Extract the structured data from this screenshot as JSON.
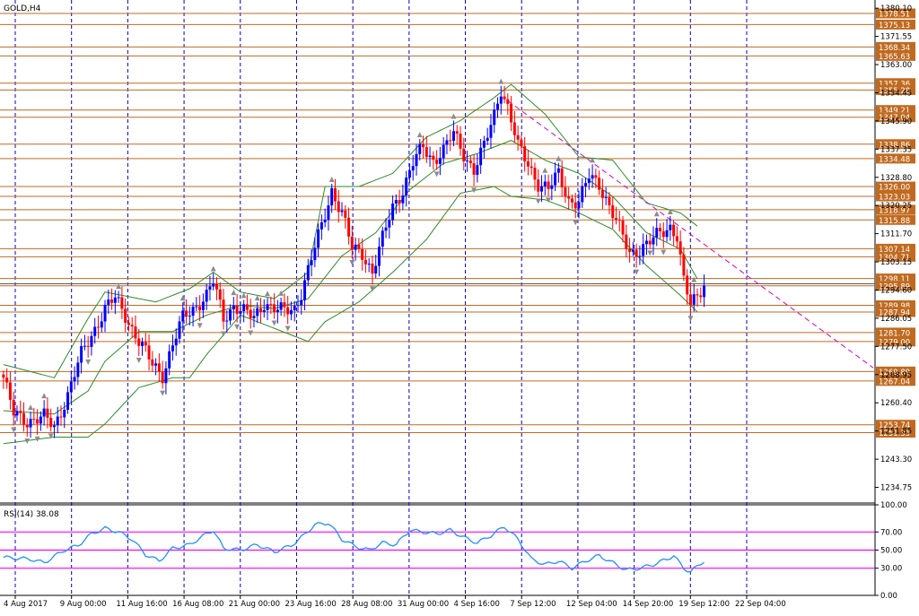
{
  "window": {
    "symbol_label": "GOLD,H4"
  },
  "chart_data": [
    {
      "type": "candlestick",
      "title": "GOLD,H4",
      "ylim": [
        1230.0,
        1381.5
      ],
      "price_axis_ticks": [
        1380.1,
        1371.55,
        1363.0,
        1354.45,
        1345.9,
        1337.35,
        1328.8,
        1320.25,
        1311.7,
        1303.15,
        1294.6,
        1286.05,
        1277.5,
        1268.95,
        1260.4,
        1251.85,
        1243.3,
        1234.75
      ],
      "price_axis_tick_labels": [
        "1380.10",
        "1371.55",
        "1363.00",
        "1354.45",
        "1345.90",
        "1337.35",
        "1328.80",
        "1320.25",
        "1311.70",
        "1303.15",
        "1294.60",
        "1286.05",
        "1277.50",
        "1268.95",
        "1260.40",
        "1251.85",
        "1243.30",
        "1234.75"
      ],
      "time_axis_labels": [
        "4 Aug 2017",
        "9 Aug 00:00",
        "11 Aug 16:00",
        "16 Aug 08:00",
        "21 Aug 00:00",
        "23 Aug 16:00",
        "28 Aug 08:00",
        "31 Aug 00:00",
        "4 Sep 16:00",
        "7 Sep 12:00",
        "12 Sep 04:00",
        "14 Sep 20:00",
        "19 Sep 12:00",
        "22 Sep 04:00"
      ],
      "horizontal_levels": [
        1378.51,
        1375.13,
        1368.34,
        1365.63,
        1357.36,
        1355.28,
        1349.21,
        1347.04,
        1338.86,
        1334.48,
        1326.0,
        1323.03,
        1318.97,
        1315.88,
        1307.14,
        1304.71,
        1298.11,
        1295.89,
        1289.98,
        1287.94,
        1281.7,
        1279.0,
        1269.89,
        1267.04,
        1253.74,
        1251.35
      ],
      "horizontal_level_labels": [
        "1378.51",
        "1375.13",
        "1368.34",
        "1365.63",
        "1357.36",
        "1355.28",
        "1349.21",
        "1347.04",
        "1338.86",
        "1334.48",
        "1326.00",
        "1323.03",
        "1318.97",
        "1315.88",
        "1307.14",
        "1304.71",
        "1298.11",
        "1295.89",
        "1289.98",
        "1287.94",
        "1281.70",
        "1279.00",
        "1269.89",
        "1267.04",
        "1253.74",
        "1251.35"
      ],
      "current_price": 1296.5,
      "close_trend_path": [
        [
          0,
          1268
        ],
        [
          3,
          1257
        ],
        [
          7,
          1255
        ],
        [
          12,
          1256
        ],
        [
          15,
          1253
        ],
        [
          19,
          1263
        ],
        [
          23,
          1275
        ],
        [
          27,
          1283
        ],
        [
          30,
          1289
        ],
        [
          33,
          1292
        ],
        [
          36,
          1287
        ],
        [
          40,
          1279
        ],
        [
          44,
          1272
        ],
        [
          47,
          1269
        ],
        [
          50,
          1278
        ],
        [
          53,
          1286
        ],
        [
          57,
          1290
        ],
        [
          60,
          1293
        ],
        [
          62,
          1297
        ],
        [
          65,
          1286
        ],
        [
          68,
          1290
        ],
        [
          71,
          1288
        ],
        [
          74,
          1286
        ],
        [
          77,
          1291
        ],
        [
          80,
          1289
        ],
        [
          83,
          1288
        ],
        [
          86,
          1289
        ],
        [
          88,
          1294
        ],
        [
          91,
          1304
        ],
        [
          94,
          1314
        ],
        [
          97,
          1325
        ],
        [
          100,
          1318
        ],
        [
          103,
          1307
        ],
        [
          106,
          1306
        ],
        [
          109,
          1300
        ],
        [
          112,
          1310
        ],
        [
          115,
          1320
        ],
        [
          118,
          1325
        ],
        [
          121,
          1333
        ],
        [
          124,
          1338
        ],
        [
          127,
          1334
        ],
        [
          130,
          1337
        ],
        [
          133,
          1342
        ],
        [
          136,
          1336
        ],
        [
          139,
          1331
        ],
        [
          142,
          1338
        ],
        [
          145,
          1348
        ],
        [
          147,
          1356
        ],
        [
          149,
          1350
        ],
        [
          152,
          1338
        ],
        [
          155,
          1333
        ],
        [
          158,
          1327
        ],
        [
          161,
          1325
        ],
        [
          164,
          1330
        ],
        [
          167,
          1322
        ],
        [
          170,
          1321
        ],
        [
          173,
          1329
        ],
        [
          176,
          1327
        ],
        [
          179,
          1320
        ],
        [
          182,
          1313
        ],
        [
          185,
          1306
        ],
        [
          188,
          1307
        ],
        [
          191,
          1309
        ],
        [
          194,
          1312
        ],
        [
          197,
          1314
        ],
        [
          199,
          1311
        ],
        [
          201,
          1297
        ],
        [
          203,
          1290
        ],
        [
          205,
          1293
        ],
        [
          207,
          1297
        ]
      ],
      "bollinger_bands": {
        "upper": [
          [
            0,
            1272
          ],
          [
            15,
            1268
          ],
          [
            25,
            1286
          ],
          [
            30,
            1294
          ],
          [
            45,
            1291
          ],
          [
            55,
            1295
          ],
          [
            62,
            1300
          ],
          [
            70,
            1294
          ],
          [
            80,
            1292
          ],
          [
            90,
            1300
          ],
          [
            95,
            1326
          ],
          [
            105,
            1326
          ],
          [
            115,
            1330
          ],
          [
            125,
            1341
          ],
          [
            135,
            1346
          ],
          [
            145,
            1353
          ],
          [
            150,
            1357
          ],
          [
            160,
            1348
          ],
          [
            170,
            1335
          ],
          [
            180,
            1334
          ],
          [
            190,
            1321
          ],
          [
            200,
            1318
          ],
          [
            205,
            1314
          ]
        ],
        "middle": [
          [
            0,
            1258
          ],
          [
            15,
            1257
          ],
          [
            25,
            1264
          ],
          [
            30,
            1273
          ],
          [
            40,
            1282
          ],
          [
            50,
            1282
          ],
          [
            60,
            1287
          ],
          [
            70,
            1290
          ],
          [
            80,
            1289
          ],
          [
            90,
            1292
          ],
          [
            100,
            1305
          ],
          [
            110,
            1312
          ],
          [
            120,
            1325
          ],
          [
            130,
            1333
          ],
          [
            140,
            1336
          ],
          [
            150,
            1340
          ],
          [
            160,
            1334
          ],
          [
            170,
            1330
          ],
          [
            180,
            1323
          ],
          [
            190,
            1312
          ],
          [
            200,
            1307
          ],
          [
            205,
            1298
          ]
        ],
        "lower": [
          [
            0,
            1248
          ],
          [
            15,
            1250
          ],
          [
            25,
            1250
          ],
          [
            30,
            1254
          ],
          [
            40,
            1265
          ],
          [
            50,
            1268
          ],
          [
            55,
            1268
          ],
          [
            60,
            1275
          ],
          [
            70,
            1287
          ],
          [
            80,
            1283
          ],
          [
            90,
            1279
          ],
          [
            95,
            1285
          ],
          [
            105,
            1291
          ],
          [
            115,
            1300
          ],
          [
            125,
            1310
          ],
          [
            135,
            1324
          ],
          [
            145,
            1326
          ],
          [
            150,
            1323
          ],
          [
            160,
            1322
          ],
          [
            170,
            1318
          ],
          [
            180,
            1313
          ],
          [
            190,
            1302
          ],
          [
            200,
            1293
          ],
          [
            205,
            1288
          ]
        ]
      },
      "trendlines": [
        {
          "style": "dashed",
          "from": [
            149,
            1352
          ],
          "to": [
            257,
            1271
          ]
        }
      ]
    },
    {
      "type": "line",
      "title": "RSI(14) 38.08",
      "indicator": "RSI(14)",
      "last_value": 38.08,
      "ylim": [
        0,
        100
      ],
      "y_ticks": [
        100,
        70,
        50,
        30,
        0
      ],
      "y_tick_labels": [
        "100.00",
        "70.00",
        "50.00",
        "30.00",
        "0.00"
      ],
      "reference_levels": [
        70,
        50,
        30
      ],
      "values": [
        [
          0,
          42
        ],
        [
          8,
          40
        ],
        [
          12,
          36
        ],
        [
          18,
          50
        ],
        [
          22,
          55
        ],
        [
          26,
          68
        ],
        [
          30,
          74
        ],
        [
          34,
          70
        ],
        [
          38,
          62
        ],
        [
          42,
          45
        ],
        [
          46,
          38
        ],
        [
          50,
          52
        ],
        [
          55,
          56
        ],
        [
          60,
          68
        ],
        [
          62,
          72
        ],
        [
          65,
          52
        ],
        [
          70,
          50
        ],
        [
          75,
          56
        ],
        [
          80,
          48
        ],
        [
          85,
          55
        ],
        [
          88,
          64
        ],
        [
          92,
          78
        ],
        [
          96,
          80
        ],
        [
          100,
          62
        ],
        [
          104,
          54
        ],
        [
          108,
          50
        ],
        [
          112,
          58
        ],
        [
          116,
          56
        ],
        [
          120,
          72
        ],
        [
          124,
          70
        ],
        [
          128,
          68
        ],
        [
          132,
          72
        ],
        [
          136,
          64
        ],
        [
          140,
          58
        ],
        [
          144,
          66
        ],
        [
          148,
          76
        ],
        [
          152,
          62
        ],
        [
          156,
          40
        ],
        [
          160,
          34
        ],
        [
          164,
          38
        ],
        [
          168,
          30
        ],
        [
          172,
          38
        ],
        [
          176,
          44
        ],
        [
          180,
          36
        ],
        [
          184,
          28
        ],
        [
          188,
          30
        ],
        [
          192,
          34
        ],
        [
          196,
          40
        ],
        [
          198,
          44
        ],
        [
          201,
          30
        ],
        [
          203,
          26
        ],
        [
          205,
          32
        ],
        [
          207,
          38
        ]
      ]
    }
  ],
  "colors": {
    "background": "#ffffff",
    "bull_candle": "#0000ff",
    "bear_candle": "#ff0000",
    "level_line": "#c06a20",
    "level_label_bg": "#c06a20",
    "level_label_text": "#ffffff",
    "bollinger": "#2e8b2e",
    "grid_vertical": "#0000cc",
    "trendline": "#cc00cc",
    "rsi_line": "#1e90ff",
    "rsi_levels": "#ff00ff",
    "fractal_marker": "#8c8c8c",
    "axis_text": "#000000"
  }
}
